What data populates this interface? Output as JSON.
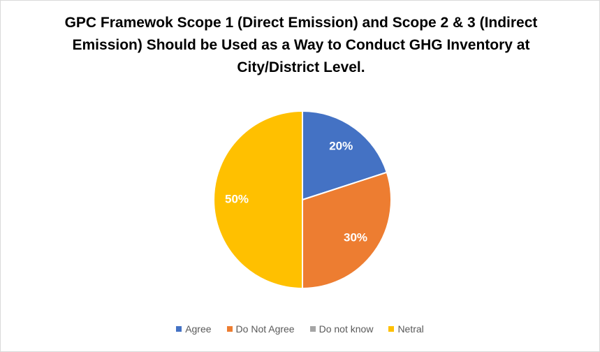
{
  "chart_data": {
    "type": "pie",
    "title": "GPC Framewok Scope 1 (Direct Emission) and Scope 2 & 3 (Indirect Emission) Should be Used as a Way to Conduct GHG Inventory at City/District Level.",
    "categories": [
      "Agree",
      "Do Not Agree",
      "Do not know",
      "Netral"
    ],
    "values": [
      20,
      30,
      0,
      50
    ],
    "value_labels": [
      "20%",
      "30%",
      null,
      "50%"
    ],
    "colors": [
      "#4472c4",
      "#ed7d31",
      "#a5a5a5",
      "#ffc000"
    ],
    "legend": "bottom"
  }
}
